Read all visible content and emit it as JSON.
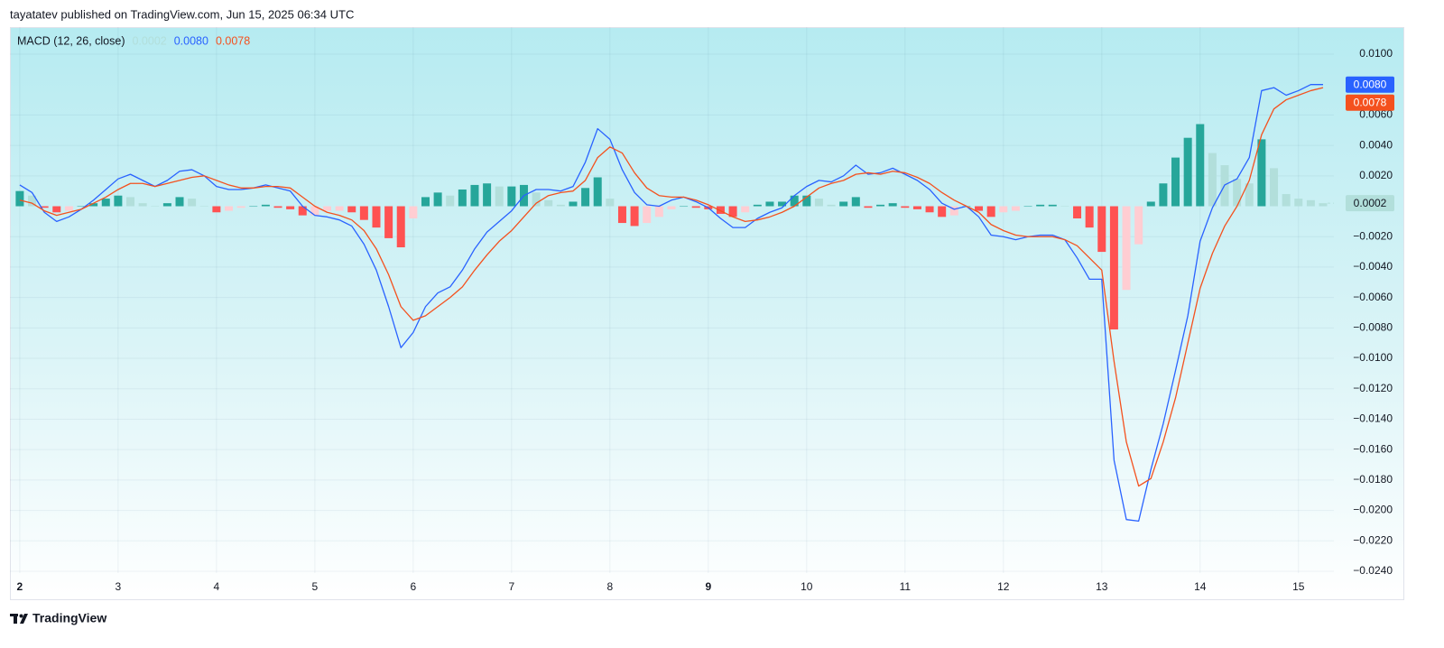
{
  "header": "tayatatev published on TradingView.com, Jun 15, 2025 06:34 UTC",
  "footer": {
    "brand": "TradingView"
  },
  "chart_data": {
    "type": "macd",
    "title": "MACD (12, 26, close)",
    "x": [
      2,
      2.125,
      2.25,
      2.375,
      2.5,
      2.625,
      2.75,
      2.875,
      3,
      3.125,
      3.25,
      3.375,
      3.5,
      3.625,
      3.75,
      3.875,
      4,
      4.125,
      4.25,
      4.375,
      4.5,
      4.625,
      4.75,
      4.875,
      5,
      5.125,
      5.25,
      5.375,
      5.5,
      5.625,
      5.75,
      5.875,
      6,
      6.125,
      6.25,
      6.375,
      6.5,
      6.625,
      6.75,
      6.875,
      7,
      7.125,
      7.25,
      7.375,
      7.5,
      7.625,
      7.75,
      7.875,
      8,
      8.125,
      8.25,
      8.375,
      8.5,
      8.625,
      8.75,
      8.875,
      9,
      9.125,
      9.25,
      9.375,
      9.5,
      9.625,
      9.75,
      9.875,
      10,
      10.125,
      10.25,
      10.375,
      10.5,
      10.625,
      10.75,
      10.875,
      11,
      11.125,
      11.25,
      11.375,
      11.5,
      11.625,
      11.75,
      11.875,
      12,
      12.125,
      12.25,
      12.375,
      12.5,
      12.625,
      12.75,
      12.875,
      13,
      13.125,
      13.25,
      13.375,
      13.5,
      13.625,
      13.75,
      13.875,
      14,
      14.125,
      14.25,
      14.375,
      14.5,
      14.625,
      14.75,
      14.875,
      15,
      15.125,
      15.25
    ],
    "xlim": [
      1.9,
      15.36
    ],
    "xticks": [
      2,
      3,
      4,
      5,
      6,
      7,
      8,
      9,
      10,
      11,
      12,
      13,
      14,
      15
    ],
    "ylim": [
      -0.02412,
      0.01178
    ],
    "yticks": [
      {
        "value": 0.01,
        "label": "0.0100"
      },
      {
        "value": 0.006,
        "label": "0.0060"
      },
      {
        "value": 0.004,
        "label": "0.0040"
      },
      {
        "value": 0.002,
        "label": "0.0020"
      },
      {
        "value": -0.002,
        "label": "−0.0020"
      },
      {
        "value": -0.004,
        "label": "−0.0040"
      },
      {
        "value": -0.006,
        "label": "−0.0060"
      },
      {
        "value": -0.008,
        "label": "−0.0080"
      },
      {
        "value": -0.01,
        "label": "−0.0100"
      },
      {
        "value": -0.012,
        "label": "−0.0120"
      },
      {
        "value": -0.014,
        "label": "−0.0140"
      },
      {
        "value": -0.016,
        "label": "−0.0160"
      },
      {
        "value": -0.018,
        "label": "−0.0180"
      },
      {
        "value": -0.02,
        "label": "−0.0200"
      },
      {
        "value": -0.022,
        "label": "−0.0220"
      },
      {
        "value": -0.024,
        "label": "−0.0240"
      }
    ],
    "grid": true,
    "series": [
      {
        "type": "histogram",
        "colors": [
          "#26a69a",
          "#b2dfdb",
          "#ffcdd2",
          "#ff5252"
        ],
        "current": {
          "value": 0.0002,
          "label": "0.0002"
        },
        "values": [
          0.001,
          0.0007,
          -0.0001,
          -0.0004,
          -0.0003,
          0,
          0.0002,
          0.0005,
          0.0007,
          0.0006,
          0.0002,
          0,
          0.0002,
          0.0006,
          0.0005,
          0,
          -0.0004,
          -0.0003,
          -0.0001,
          0,
          0.0001,
          -0.0001,
          -0.0002,
          -0.0006,
          -0.0006,
          -0.0003,
          -0.0003,
          -0.0004,
          -0.0009,
          -0.0014,
          -0.0021,
          -0.0027,
          -0.0008,
          0.0006,
          0.0009,
          0.0007,
          0.0011,
          0.0014,
          0.0015,
          0.0013,
          0.0013,
          0.0014,
          0.0009,
          0.0004,
          0.0001,
          0.0003,
          0.0012,
          0.0019,
          0.0005,
          -0.0011,
          -0.0013,
          -0.0011,
          -0.0007,
          -0.0002,
          0,
          -0.0001,
          -0.0002,
          -0.0005,
          -0.0007,
          -0.0004,
          0.0001,
          0.0003,
          0.0003,
          0.0007,
          0.0007,
          0.0005,
          0.0001,
          0.0003,
          0.0006,
          -0.0001,
          0.0001,
          0.0002,
          -0.0001,
          -0.0002,
          -0.0004,
          -0.0007,
          -0.0006,
          0,
          -0.0003,
          -0.0007,
          -0.0004,
          -0.0003,
          0,
          0.0001,
          0.0001,
          0,
          -0.0008,
          -0.0014,
          -0.003,
          -0.0081,
          -0.0055,
          -0.0025,
          0.0003,
          0.0015,
          0.0032,
          0.0045,
          0.0054,
          0.0035,
          0.0027,
          0.0018,
          0.0015,
          0.0044,
          0.0025,
          0.0008,
          0.0005,
          0.0004,
          0.0002
        ]
      },
      {
        "type": "line",
        "color": "#2962ff",
        "current": {
          "value": 0.008,
          "label": "0.0080"
        },
        "values": [
          0.0014,
          0.0009,
          -0.0004,
          -0.001,
          -0.0007,
          -0.0002,
          0.0004,
          0.0011,
          0.0018,
          0.0021,
          0.0017,
          0.0013,
          0.0017,
          0.0023,
          0.0024,
          0.002,
          0.0013,
          0.0011,
          0.0011,
          0.0012,
          0.0014,
          0.0012,
          0.001,
          0,
          -0.0006,
          -0.0007,
          -0.0009,
          -0.0013,
          -0.0025,
          -0.0042,
          -0.0066,
          -0.0093,
          -0.0083,
          -0.0066,
          -0.0057,
          -0.0053,
          -0.0042,
          -0.0028,
          -0.0017,
          -0.001,
          -0.0003,
          0.0007,
          0.0011,
          0.0011,
          0.001,
          0.0013,
          0.0029,
          0.0051,
          0.0044,
          0.0024,
          0.0009,
          0.0001,
          0,
          0.0004,
          0.0006,
          0.0003,
          -0.0001,
          -0.0008,
          -0.0014,
          -0.0014,
          -0.0008,
          -0.0004,
          -0.0001,
          0.0007,
          0.0013,
          0.0017,
          0.0016,
          0.002,
          0.0027,
          0.0021,
          0.0022,
          0.0025,
          0.0021,
          0.0017,
          0.0011,
          0.0002,
          -0.0002,
          0,
          -0.0007,
          -0.0019,
          -0.002,
          -0.0022,
          -0.002,
          -0.0019,
          -0.0019,
          -0.0022,
          -0.0034,
          -0.0048,
          -0.0048,
          -0.0167,
          -0.0206,
          -0.0207,
          -0.0173,
          -0.0143,
          -0.0108,
          -0.0072,
          -0.0023,
          -0.0001,
          0.0014,
          0.0018,
          0.0032,
          0.0076,
          0.0078,
          0.0073,
          0.0076,
          0.008,
          0.008
        ]
      },
      {
        "type": "line",
        "color": "#f4511e",
        "current": {
          "value": 0.0078,
          "label": "0.0078"
        },
        "values": [
          0.0004,
          0.0002,
          -0.0003,
          -0.0006,
          -0.0004,
          -0.0002,
          0.0002,
          0.0006,
          0.0011,
          0.0015,
          0.0015,
          0.0013,
          0.0015,
          0.0017,
          0.0019,
          0.002,
          0.0017,
          0.0014,
          0.0012,
          0.0012,
          0.0013,
          0.0013,
          0.0012,
          0.0006,
          0,
          -0.0004,
          -0.0006,
          -0.0009,
          -0.0016,
          -0.0028,
          -0.0045,
          -0.0066,
          -0.0075,
          -0.0072,
          -0.0066,
          -0.006,
          -0.0053,
          -0.0042,
          -0.0032,
          -0.0023,
          -0.0016,
          -0.0007,
          0.0002,
          0.0007,
          0.0009,
          0.001,
          0.0017,
          0.0032,
          0.0039,
          0.0035,
          0.0022,
          0.0012,
          0.0007,
          0.0006,
          0.0006,
          0.0004,
          0.0001,
          -0.0003,
          -0.0007,
          -0.001,
          -0.0009,
          -0.0007,
          -0.0004,
          0,
          0.0006,
          0.0012,
          0.0015,
          0.0017,
          0.0021,
          0.0022,
          0.0021,
          0.0023,
          0.0022,
          0.0019,
          0.0015,
          0.0009,
          0.0004,
          0,
          -0.0004,
          -0.0012,
          -0.0016,
          -0.0019,
          -0.002,
          -0.002,
          -0.002,
          -0.0022,
          -0.0026,
          -0.0034,
          -0.0042,
          -0.0102,
          -0.0155,
          -0.0184,
          -0.0179,
          -0.0155,
          -0.0126,
          -0.009,
          -0.0054,
          -0.0031,
          -0.0013,
          0,
          0.0017,
          0.0047,
          0.0064,
          0.007,
          0.0073,
          0.0076,
          0.0078
        ]
      }
    ]
  }
}
